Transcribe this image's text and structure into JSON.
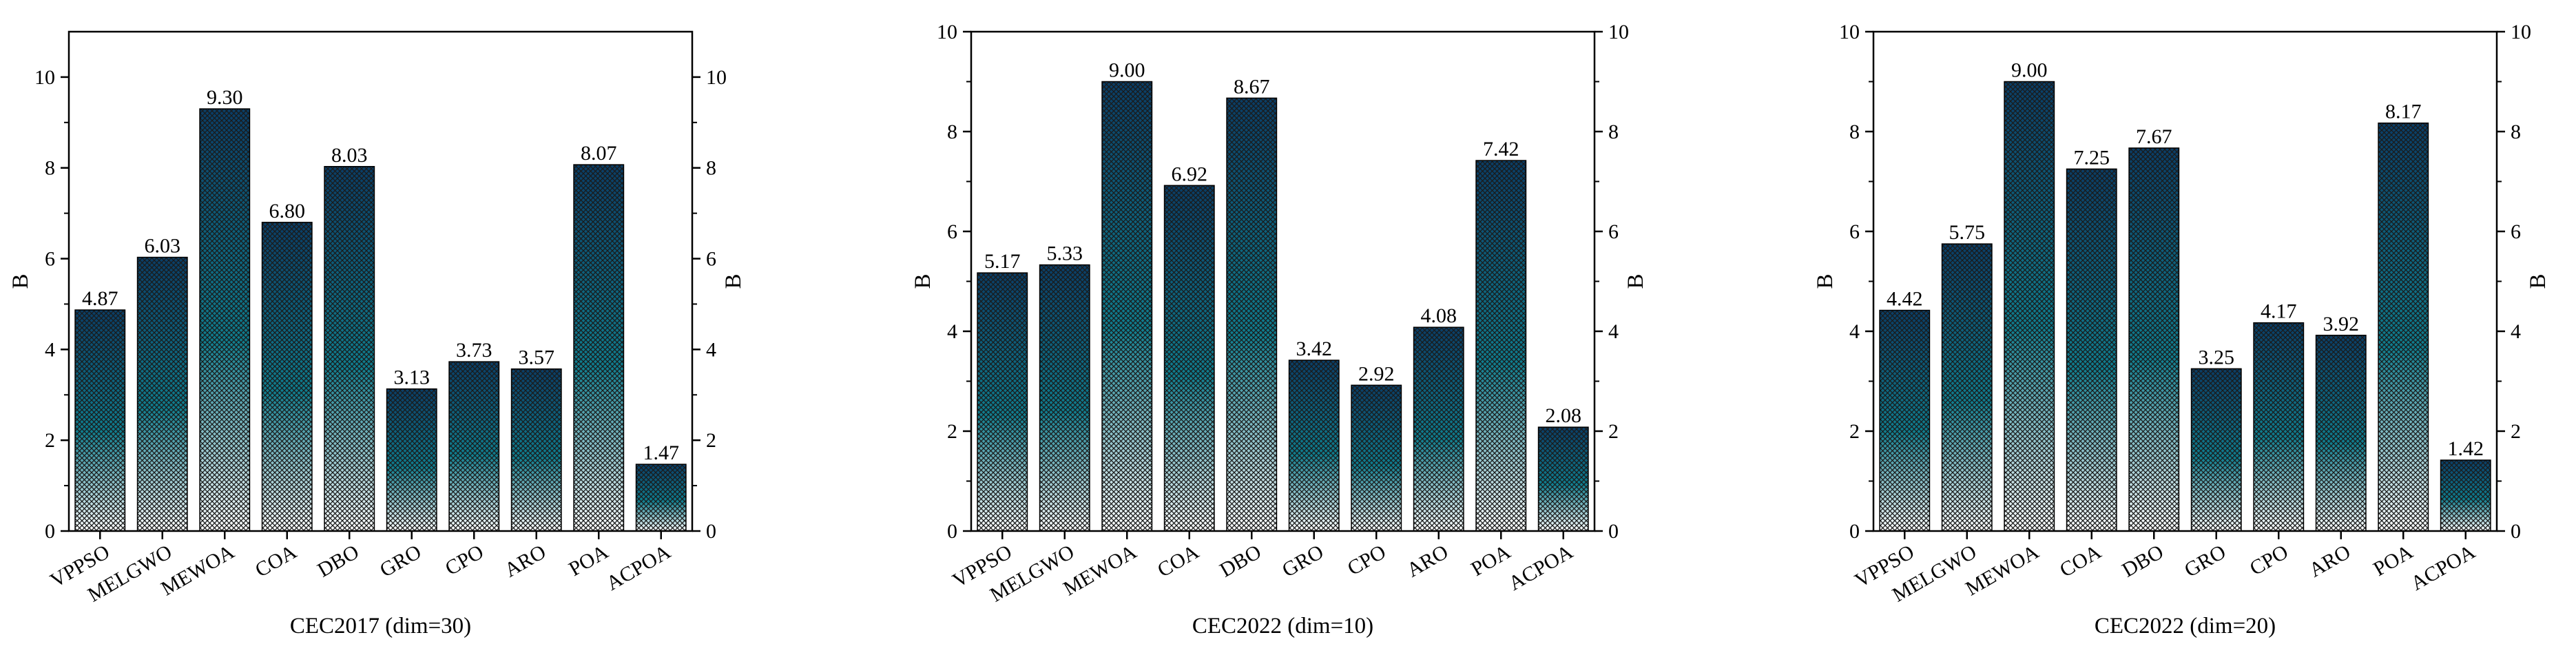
{
  "chart_data": [
    {
      "type": "bar",
      "title": "",
      "xlabel": "CEC2017 (dim=30)",
      "ylabel": "B",
      "ylabel_right": "B",
      "ylim": [
        0,
        11
      ],
      "yticks": [
        0,
        2,
        4,
        6,
        8,
        10
      ],
      "categories": [
        "VPPSO",
        "MELGWO",
        "MEWOA",
        "COA",
        "DBO",
        "GRO",
        "CPO",
        "ARO",
        "POA",
        "ACPOA"
      ],
      "values": [
        4.87,
        6.03,
        9.3,
        6.8,
        8.03,
        3.13,
        3.73,
        3.57,
        8.07,
        1.47
      ],
      "value_labels": [
        "4.87",
        "6.03",
        "9.30",
        "6.80",
        "8.03",
        "3.13",
        "3.73",
        "3.57",
        "8.07",
        "1.47"
      ]
    },
    {
      "type": "bar",
      "title": "",
      "xlabel": "CEC2022 (dim=10)",
      "ylabel": "B",
      "ylabel_right": "B",
      "ylim": [
        0,
        10
      ],
      "yticks": [
        0,
        2,
        4,
        6,
        8,
        10
      ],
      "categories": [
        "VPPSO",
        "MELGWO",
        "MEWOA",
        "COA",
        "DBO",
        "GRO",
        "CPO",
        "ARO",
        "POA",
        "ACPOA"
      ],
      "values": [
        5.17,
        5.33,
        9.0,
        6.92,
        8.67,
        3.42,
        2.92,
        4.08,
        7.42,
        2.08
      ],
      "value_labels": [
        "5.17",
        "5.33",
        "9.00",
        "6.92",
        "8.67",
        "3.42",
        "2.92",
        "4.08",
        "7.42",
        "2.08"
      ]
    },
    {
      "type": "bar",
      "title": "",
      "xlabel": "CEC2022 (dim=20)",
      "ylabel": "B",
      "ylabel_right": "B",
      "ylim": [
        0,
        10
      ],
      "yticks": [
        0,
        2,
        4,
        6,
        8,
        10
      ],
      "categories": [
        "VPPSO",
        "MELGWO",
        "MEWOA",
        "COA",
        "DBO",
        "GRO",
        "CPO",
        "ARO",
        "POA",
        "ACPOA"
      ],
      "values": [
        4.42,
        5.75,
        9.0,
        7.25,
        7.67,
        3.25,
        4.17,
        3.92,
        8.17,
        1.42
      ],
      "value_labels": [
        "4.42",
        "5.75",
        "9.00",
        "7.25",
        "7.67",
        "3.25",
        "4.17",
        "3.92",
        "8.17",
        "1.42"
      ]
    }
  ],
  "colors": {
    "bar_top": "#0a3d66",
    "bar_mid": "#0f7d8e",
    "bar_bottom": "#ffffff",
    "hatch": "#1a1a1a",
    "axis": "#000000"
  }
}
